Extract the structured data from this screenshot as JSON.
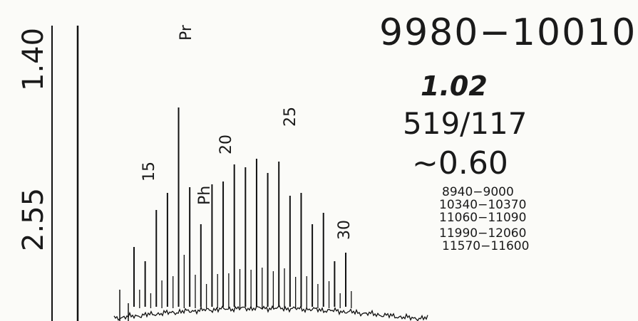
{
  "header": {
    "range": "9980−10010",
    "ratio": "1.02",
    "counts": "519/117",
    "approx": "~0.60"
  },
  "windows": [
    "8940−9000",
    "10340−10370",
    "11060−11090",
    "11990−12060",
    "11570−11600"
  ],
  "scale_labels": [
    "1.40",
    "2.55"
  ],
  "peak_labels": {
    "pr": "Pr",
    "ph": "Ph",
    "n15": "15",
    "n20": "20",
    "n25": "25",
    "n30": "30"
  },
  "chart_data": {
    "type": "line",
    "title": "9980−10010",
    "xlabel": "",
    "ylabel": "",
    "grid": false,
    "legend": "none",
    "annotations": [
      "1.02",
      "519/117",
      "~0.60",
      "8940−9000",
      "10340−10370",
      "11060−11090",
      "11990−12060",
      "11570−11600",
      "1.40",
      "2.55"
    ],
    "peaks": [
      {
        "label": "",
        "rel_height": 0.26
      },
      {
        "label": "",
        "rel_height": 0.21
      },
      {
        "label": "15",
        "rel_height": 0.39
      },
      {
        "label": "",
        "rel_height": 0.45
      },
      {
        "label": "Pr",
        "rel_height": 0.75
      },
      {
        "label": "",
        "rel_height": 0.47
      },
      {
        "label": "Ph",
        "rel_height": 0.34
      },
      {
        "label": "",
        "rel_height": 0.48
      },
      {
        "label": "20",
        "rel_height": 0.49
      },
      {
        "label": "",
        "rel_height": 0.55
      },
      {
        "label": "",
        "rel_height": 0.54
      },
      {
        "label": "",
        "rel_height": 0.57
      },
      {
        "label": "",
        "rel_height": 0.52
      },
      {
        "label": "25",
        "rel_height": 0.56
      },
      {
        "label": "",
        "rel_height": 0.44
      },
      {
        "label": "",
        "rel_height": 0.45
      },
      {
        "label": "",
        "rel_height": 0.34
      },
      {
        "label": "",
        "rel_height": 0.38
      },
      {
        "label": "30",
        "rel_height": 0.21
      },
      {
        "label": "",
        "rel_height": 0.24
      }
    ]
  }
}
